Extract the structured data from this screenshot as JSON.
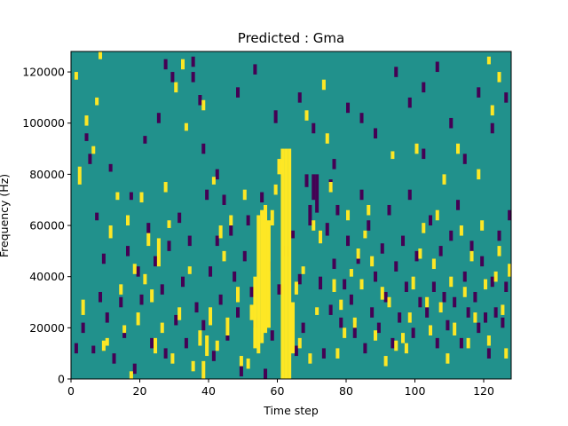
{
  "chart_data": {
    "type": "heatmap",
    "title": "Predicted : Gma",
    "xlabel": "Time step",
    "ylabel": "Frequency (Hz)",
    "xlim": [
      0,
      128
    ],
    "ylim": [
      0,
      128000
    ],
    "x_ticks": [
      0,
      20,
      40,
      60,
      80,
      100,
      120
    ],
    "x_tick_labels": [
      "0",
      "20",
      "40",
      "60",
      "80",
      "100",
      "120"
    ],
    "y_ticks": [
      0,
      20000,
      40000,
      60000,
      80000,
      100000,
      120000
    ],
    "y_tick_labels": [
      "0",
      "20000",
      "40000",
      "60000",
      "80000",
      "100000",
      "120000"
    ],
    "grid": false,
    "legend": "none",
    "colormap": "viridis",
    "colors": {
      "background": "#21918c",
      "high": "#fde725",
      "low": "#440154"
    },
    "grid_shape": {
      "time_steps": 128,
      "frequency_bins": 128,
      "bin_hz": 1000
    },
    "cells": {
      "high": [
        [
          1,
          117,
          120
        ],
        [
          2,
          76,
          83
        ],
        [
          3,
          25,
          31
        ],
        [
          4,
          99,
          103
        ],
        [
          6,
          88,
          91
        ],
        [
          7,
          107,
          110
        ],
        [
          8,
          125,
          128
        ],
        [
          9,
          11,
          15
        ],
        [
          10,
          13,
          16
        ],
        [
          11,
          55,
          60
        ],
        [
          13,
          70,
          73
        ],
        [
          14,
          33,
          37
        ],
        [
          15,
          18,
          21
        ],
        [
          16,
          60,
          64
        ],
        [
          17,
          0,
          3
        ],
        [
          18,
          41,
          45
        ],
        [
          19,
          21,
          26
        ],
        [
          20,
          69,
          73
        ],
        [
          21,
          37,
          41
        ],
        [
          22,
          52,
          57
        ],
        [
          23,
          30,
          35
        ],
        [
          24,
          10,
          16
        ],
        [
          25,
          44,
          55
        ],
        [
          26,
          18,
          22
        ],
        [
          27,
          73,
          77
        ],
        [
          28,
          59,
          62
        ],
        [
          29,
          6,
          10
        ],
        [
          30,
          112,
          116
        ],
        [
          31,
          23,
          28
        ],
        [
          32,
          121,
          125
        ],
        [
          33,
          97,
          100
        ],
        [
          34,
          41,
          44
        ],
        [
          35,
          3,
          7
        ],
        [
          37,
          13,
          19
        ],
        [
          38,
          105,
          109
        ],
        [
          38,
          0,
          7
        ],
        [
          39,
          9,
          17
        ],
        [
          40,
          21,
          28
        ],
        [
          41,
          76,
          79
        ],
        [
          42,
          11,
          15
        ],
        [
          43,
          55,
          60
        ],
        [
          44,
          46,
          50
        ],
        [
          45,
          17,
          24
        ],
        [
          46,
          60,
          64
        ],
        [
          48,
          30,
          36
        ],
        [
          49,
          5,
          9
        ],
        [
          50,
          70,
          74
        ],
        [
          51,
          4,
          8
        ],
        [
          52,
          23,
          29
        ],
        [
          53,
          12,
          40
        ],
        [
          54,
          10,
          64
        ],
        [
          55,
          14,
          66
        ],
        [
          56,
          18,
          68
        ],
        [
          57,
          20,
          62
        ],
        [
          58,
          60,
          66
        ],
        [
          59,
          72,
          76
        ],
        [
          60,
          80,
          86
        ],
        [
          61,
          0,
          90
        ],
        [
          62,
          0,
          90
        ],
        [
          63,
          0,
          90
        ],
        [
          64,
          10,
          30
        ],
        [
          65,
          33,
          38
        ],
        [
          66,
          12,
          16
        ],
        [
          67,
          41,
          44
        ],
        [
          68,
          101,
          105
        ],
        [
          69,
          6,
          10
        ],
        [
          70,
          58,
          62
        ],
        [
          71,
          25,
          28
        ],
        [
          72,
          53,
          58
        ],
        [
          73,
          113,
          117
        ],
        [
          74,
          92,
          96
        ],
        [
          75,
          73,
          77
        ],
        [
          76,
          34,
          39
        ],
        [
          77,
          8,
          12
        ],
        [
          78,
          27,
          31
        ],
        [
          79,
          16,
          20
        ],
        [
          80,
          62,
          66
        ],
        [
          81,
          40,
          43
        ],
        [
          82,
          20,
          24
        ],
        [
          83,
          47,
          51
        ],
        [
          84,
          35,
          39
        ],
        [
          85,
          55,
          58
        ],
        [
          86,
          64,
          68
        ],
        [
          87,
          44,
          48
        ],
        [
          88,
          15,
          19
        ],
        [
          90,
          31,
          36
        ],
        [
          91,
          5,
          9
        ],
        [
          92,
          28,
          32
        ],
        [
          93,
          86,
          89
        ],
        [
          94,
          11,
          15
        ],
        [
          96,
          14,
          18
        ],
        [
          97,
          10,
          14
        ],
        [
          98,
          22,
          26
        ],
        [
          99,
          35,
          40
        ],
        [
          100,
          88,
          92
        ],
        [
          101,
          47,
          51
        ],
        [
          102,
          57,
          61
        ],
        [
          103,
          28,
          32
        ],
        [
          104,
          17,
          21
        ],
        [
          105,
          43,
          47
        ],
        [
          106,
          62,
          66
        ],
        [
          107,
          26,
          30
        ],
        [
          108,
          76,
          80
        ],
        [
          109,
          6,
          10
        ],
        [
          110,
          36,
          40
        ],
        [
          111,
          17,
          22
        ],
        [
          112,
          88,
          92
        ],
        [
          113,
          56,
          60
        ],
        [
          114,
          32,
          36
        ],
        [
          115,
          12,
          16
        ],
        [
          116,
          46,
          50
        ],
        [
          117,
          22,
          26
        ],
        [
          118,
          78,
          82
        ],
        [
          119,
          58,
          62
        ],
        [
          120,
          35,
          39
        ],
        [
          121,
          13,
          17
        ],
        [
          122,
          103,
          107
        ],
        [
          123,
          38,
          42
        ],
        [
          124,
          48,
          52
        ],
        [
          125,
          25,
          29
        ],
        [
          126,
          8,
          12
        ],
        [
          127,
          40,
          45
        ],
        [
          124,
          116,
          120
        ],
        [
          121,
          123,
          126
        ]
      ],
      "low": [
        [
          1,
          10,
          14
        ],
        [
          3,
          18,
          22
        ],
        [
          4,
          93,
          96
        ],
        [
          5,
          84,
          88
        ],
        [
          6,
          10,
          13
        ],
        [
          7,
          62,
          65
        ],
        [
          8,
          30,
          34
        ],
        [
          9,
          45,
          49
        ],
        [
          10,
          22,
          26
        ],
        [
          11,
          81,
          84
        ],
        [
          12,
          6,
          10
        ],
        [
          14,
          28,
          32
        ],
        [
          15,
          16,
          19
        ],
        [
          16,
          48,
          52
        ],
        [
          17,
          70,
          73
        ],
        [
          18,
          2,
          6
        ],
        [
          19,
          40,
          44
        ],
        [
          20,
          29,
          33
        ],
        [
          21,
          92,
          95
        ],
        [
          22,
          57,
          61
        ],
        [
          23,
          12,
          16
        ],
        [
          24,
          44,
          48
        ],
        [
          25,
          100,
          104
        ],
        [
          26,
          33,
          37
        ],
        [
          27,
          8,
          12
        ],
        [
          28,
          50,
          54
        ],
        [
          29,
          116,
          120
        ],
        [
          30,
          21,
          25
        ],
        [
          31,
          61,
          65
        ],
        [
          32,
          36,
          40
        ],
        [
          33,
          12,
          16
        ],
        [
          34,
          52,
          56
        ],
        [
          35,
          116,
          120
        ],
        [
          36,
          26,
          30
        ],
        [
          37,
          107,
          111
        ],
        [
          38,
          19,
          23
        ],
        [
          39,
          70,
          74
        ],
        [
          40,
          40,
          44
        ],
        [
          41,
          7,
          11
        ],
        [
          42,
          52,
          56
        ],
        [
          43,
          29,
          33
        ],
        [
          44,
          68,
          72
        ],
        [
          45,
          15,
          23
        ],
        [
          46,
          56,
          60
        ],
        [
          47,
          38,
          42
        ],
        [
          48,
          24,
          28
        ],
        [
          49,
          1,
          5
        ],
        [
          50,
          46,
          50
        ],
        [
          51,
          60,
          64
        ],
        [
          52,
          32,
          36
        ],
        [
          53,
          20,
          24
        ],
        [
          55,
          69,
          73
        ],
        [
          56,
          0,
          4
        ],
        [
          57,
          42,
          46
        ],
        [
          58,
          15,
          19
        ],
        [
          60,
          33,
          37
        ],
        [
          62,
          48,
          52
        ],
        [
          64,
          55,
          58
        ],
        [
          65,
          9,
          13
        ],
        [
          66,
          37,
          41
        ],
        [
          67,
          18,
          22
        ],
        [
          68,
          75,
          80
        ],
        [
          69,
          60,
          68
        ],
        [
          70,
          70,
          80
        ],
        [
          71,
          65,
          80
        ],
        [
          72,
          35,
          40
        ],
        [
          73,
          8,
          12
        ],
        [
          74,
          56,
          61
        ],
        [
          75,
          25,
          29
        ],
        [
          76,
          43,
          47
        ],
        [
          77,
          64,
          68
        ],
        [
          78,
          20,
          24
        ],
        [
          79,
          35,
          39
        ],
        [
          80,
          52,
          56
        ],
        [
          81,
          29,
          33
        ],
        [
          82,
          16,
          22
        ],
        [
          83,
          45,
          49
        ],
        [
          84,
          70,
          74
        ],
        [
          85,
          10,
          14
        ],
        [
          86,
          58,
          62
        ],
        [
          87,
          24,
          28
        ],
        [
          88,
          38,
          42
        ],
        [
          89,
          18,
          22
        ],
        [
          90,
          49,
          53
        ],
        [
          91,
          30,
          34
        ],
        [
          92,
          64,
          68
        ],
        [
          93,
          12,
          16
        ],
        [
          94,
          42,
          46
        ],
        [
          95,
          22,
          26
        ],
        [
          96,
          52,
          56
        ],
        [
          97,
          34,
          38
        ],
        [
          98,
          70,
          74
        ],
        [
          99,
          16,
          20
        ],
        [
          100,
          46,
          50
        ],
        [
          101,
          28,
          32
        ],
        [
          102,
          86,
          90
        ],
        [
          103,
          24,
          28
        ],
        [
          104,
          60,
          64
        ],
        [
          105,
          34,
          38
        ],
        [
          106,
          12,
          16
        ],
        [
          107,
          48,
          52
        ],
        [
          108,
          30,
          34
        ],
        [
          109,
          19,
          23
        ],
        [
          110,
          54,
          58
        ],
        [
          111,
          28,
          32
        ],
        [
          112,
          66,
          70
        ],
        [
          113,
          12,
          16
        ],
        [
          114,
          38,
          42
        ],
        [
          115,
          24,
          28
        ],
        [
          116,
          50,
          54
        ],
        [
          117,
          30,
          34
        ],
        [
          118,
          18,
          22
        ],
        [
          119,
          44,
          48
        ],
        [
          120,
          22,
          26
        ],
        [
          121,
          8,
          12
        ],
        [
          122,
          36,
          40
        ],
        [
          123,
          24,
          28
        ],
        [
          124,
          54,
          58
        ],
        [
          125,
          20,
          24
        ],
        [
          126,
          34,
          38
        ],
        [
          127,
          62,
          66
        ],
        [
          59,
          100,
          105
        ],
        [
          66,
          108,
          112
        ],
        [
          70,
          96,
          100
        ],
        [
          75,
          74,
          78
        ],
        [
          48,
          110,
          114
        ],
        [
          38,
          88,
          92
        ],
        [
          42,
          78,
          82
        ],
        [
          27,
          121,
          125
        ],
        [
          35,
          122,
          126
        ],
        [
          53,
          119,
          123
        ],
        [
          76,
          82,
          86
        ],
        [
          80,
          104,
          108
        ],
        [
          84,
          100,
          104
        ],
        [
          88,
          94,
          98
        ],
        [
          94,
          118,
          122
        ],
        [
          98,
          106,
          110
        ],
        [
          102,
          112,
          116
        ],
        [
          106,
          120,
          124
        ],
        [
          110,
          98,
          102
        ],
        [
          114,
          84,
          88
        ],
        [
          118,
          110,
          114
        ],
        [
          122,
          96,
          100
        ],
        [
          126,
          108,
          112
        ]
      ]
    }
  }
}
